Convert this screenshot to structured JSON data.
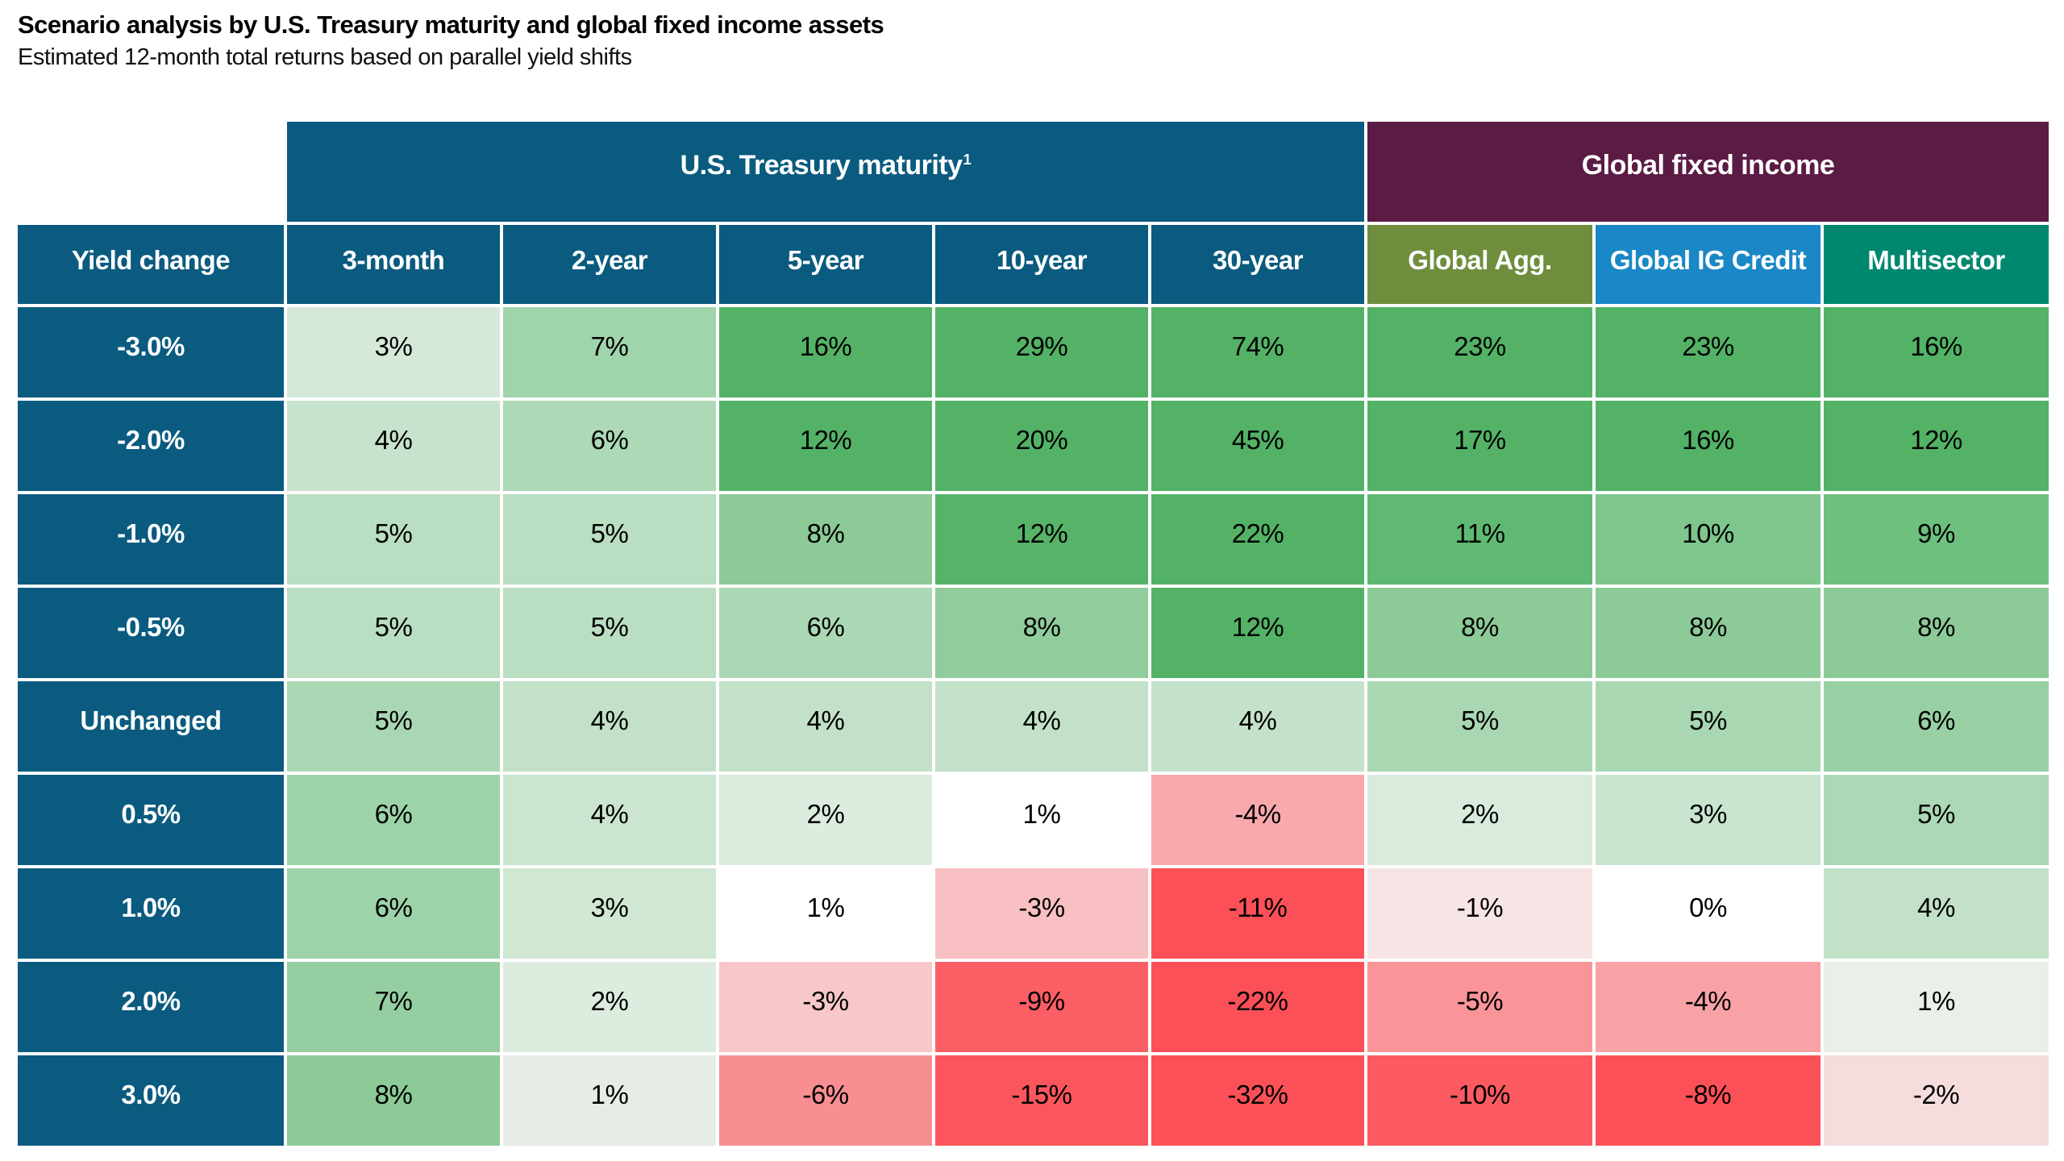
{
  "title": "Scenario analysis by U.S. Treasury maturity and global fixed income assets",
  "subtitle": "Estimated 12-month total returns based on parallel yield shifts",
  "chart_data": {
    "type": "heatmap",
    "title": "Scenario analysis by U.S. Treasury maturity and global fixed income assets",
    "subtitle": "Estimated 12-month total returns based on parallel yield shifts",
    "unit": "%",
    "row_header": "Yield change",
    "column_groups": [
      {
        "label": "U.S. Treasury maturity",
        "superscript": "1",
        "span": 5
      },
      {
        "label": "Global fixed income",
        "superscript": "",
        "span": 3
      }
    ],
    "columns": [
      "3-month",
      "2-year",
      "5-year",
      "10-year",
      "30-year",
      "Global Agg.",
      "Global IG Credit",
      "Multisector"
    ],
    "rows": [
      "-3.0%",
      "-2.0%",
      "-1.0%",
      "-0.5%",
      "Unchanged",
      "0.5%",
      "1.0%",
      "2.0%",
      "3.0%"
    ],
    "values": [
      [
        3,
        7,
        16,
        29,
        74,
        23,
        23,
        16
      ],
      [
        4,
        6,
        12,
        20,
        45,
        17,
        16,
        12
      ],
      [
        5,
        5,
        8,
        12,
        22,
        11,
        10,
        9
      ],
      [
        5,
        5,
        6,
        8,
        12,
        8,
        8,
        8
      ],
      [
        5,
        4,
        4,
        4,
        4,
        5,
        5,
        6
      ],
      [
        6,
        4,
        2,
        1,
        -4,
        2,
        3,
        5
      ],
      [
        6,
        3,
        1,
        -3,
        -11,
        -1,
        0,
        4
      ],
      [
        7,
        2,
        -3,
        -9,
        -22,
        -5,
        -4,
        1
      ],
      [
        8,
        1,
        -6,
        -15,
        -32,
        -10,
        -8,
        -2
      ]
    ],
    "legend_position": "none",
    "grid": true
  },
  "styles": {
    "header_blue": "#0a5b7f",
    "treasury_band_color": "#0a5b7f",
    "global_band_color": "#5a1b44",
    "column_header_colors": [
      "#0a5b7f",
      "#0a5b7f",
      "#0a5b7f",
      "#0a5b7f",
      "#0a5b7f",
      "#6f8e3d",
      "#1a87c6",
      "#00886f"
    ],
    "positive_full": "#53b266",
    "negative_full": "#fb5057",
    "cell_colors": [
      [
        "#d5e9d9",
        "#a0d4ab",
        "#53b266",
        "#53b266",
        "#53b266",
        "#53b266",
        "#53b266",
        "#53b266"
      ],
      [
        "#c7e3cd",
        "#add9b6",
        "#53b266",
        "#53b266",
        "#53b266",
        "#53b266",
        "#53b266",
        "#53b266"
      ],
      [
        "#b9dec1",
        "#b9dec1",
        "#8cca97",
        "#56b368",
        "#53b266",
        "#5fb972",
        "#7ec68d",
        "#6ec07e"
      ],
      [
        "#b9dec1",
        "#b9dec1",
        "#abd8b4",
        "#90cc9c",
        "#53b266",
        "#8cca97",
        "#8cca97",
        "#8cca97"
      ],
      [
        "#aad7b3",
        "#c2e1c8",
        "#c2e1c8",
        "#c2e1c8",
        "#c4e2ca",
        "#a9d7b2",
        "#a9d7b2",
        "#98d0a4"
      ],
      [
        "#9dd3a8",
        "#cbe5d0",
        "#dceddf",
        "#ffffff",
        "#f9a9ac",
        "#d8ebdc",
        "#c9e4cf",
        "#acd8b5"
      ],
      [
        "#9dd3a8",
        "#d0e7d4",
        "#ffffff",
        "#f8c0c3",
        "#fb5057",
        "#f7e4e4",
        "#ffffff",
        "#c2e1c8"
      ],
      [
        "#95cfa1",
        "#dceddf",
        "#f7c7c9",
        "#fb5e65",
        "#fb5057",
        "#f99599",
        "#f9a2a5",
        "#e9f0e9"
      ],
      [
        "#8cca97",
        "#e6ede6",
        "#f88e92",
        "#fb565d",
        "#fb5057",
        "#fb5a61",
        "#fb5057",
        "#f5dcdd"
      ]
    ]
  }
}
